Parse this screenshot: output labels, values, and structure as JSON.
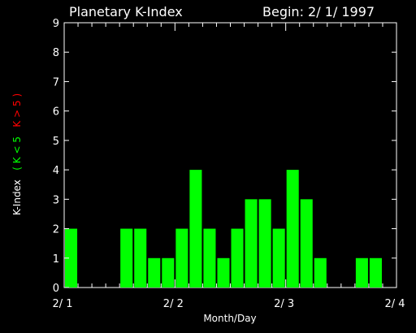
{
  "chart_data": {
    "type": "bar",
    "title": "Planetary K-Index",
    "subtitle": "Begin: 2/ 1/ 1997",
    "xlabel": "Month/Day",
    "ylabel": {
      "prefix": "K-Index",
      "open": "(",
      "low": "K < 5",
      "high": "K > 5",
      "close": ")"
    },
    "xticks": [
      "2/ 1",
      "2/ 2",
      "2/ 3",
      "2/ 4"
    ],
    "yticks": [
      "0",
      "1",
      "2",
      "3",
      "4",
      "5",
      "6",
      "7",
      "8",
      "9"
    ],
    "ylim": [
      0,
      9
    ],
    "slots_per_day": 8,
    "days": 3,
    "values": [
      2,
      0,
      0,
      0,
      2,
      2,
      1,
      1,
      2,
      4,
      2,
      1,
      2,
      3,
      3,
      2,
      4,
      3,
      1,
      0,
      0,
      1,
      1,
      0
    ],
    "colors": {
      "background": "#000000",
      "axis": "#ffffff",
      "low": "#00ff00",
      "high": "#ff0000"
    }
  }
}
